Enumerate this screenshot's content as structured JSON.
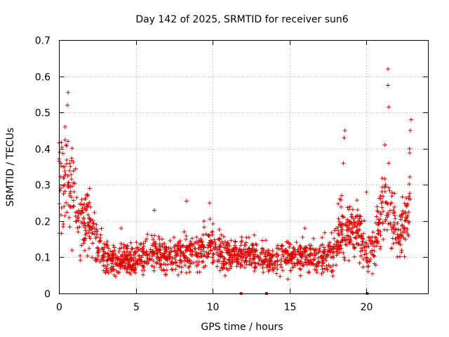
{
  "chart_data": {
    "type": "scatter",
    "title": "Day 142 of 2025, SRMTID for receiver sun6",
    "xlabel": "GPS time / hours",
    "ylabel": "SRMTID / TECUs",
    "xlim": [
      0,
      24
    ],
    "ylim": [
      0,
      0.7
    ],
    "x_ticks": [
      0,
      5,
      10,
      15,
      20
    ],
    "x_tick_labels": [
      "0",
      "5",
      "10",
      "15",
      "20"
    ],
    "y_ticks": [
      0,
      0.1,
      0.2,
      0.3,
      0.4,
      0.5,
      0.6,
      0.7
    ],
    "y_tick_labels": [
      "0",
      "0.1",
      "0.2",
      "0.3",
      "0.4",
      "0.5",
      "0.6",
      "0.7"
    ],
    "grid": true,
    "marker": "plus",
    "color": "#e00000",
    "series": [
      {
        "name": "SRMTID",
        "x_range": [
          0,
          22.85
        ],
        "trend": [
          [
            0.0,
            0.3
          ],
          [
            0.5,
            0.34
          ],
          [
            1.0,
            0.26
          ],
          [
            1.5,
            0.18
          ],
          [
            2.0,
            0.2
          ],
          [
            2.5,
            0.13
          ],
          [
            3.0,
            0.1
          ],
          [
            4.0,
            0.09
          ],
          [
            5.0,
            0.09
          ],
          [
            6.0,
            0.12
          ],
          [
            7.0,
            0.1
          ],
          [
            8.0,
            0.11
          ],
          [
            9.0,
            0.11
          ],
          [
            9.5,
            0.14
          ],
          [
            10.0,
            0.13
          ],
          [
            11.0,
            0.1
          ],
          [
            12.0,
            0.11
          ],
          [
            13.0,
            0.1
          ],
          [
            14.0,
            0.09
          ],
          [
            15.0,
            0.1
          ],
          [
            16.0,
            0.1
          ],
          [
            17.0,
            0.1
          ],
          [
            17.8,
            0.11
          ],
          [
            18.5,
            0.19
          ],
          [
            19.0,
            0.17
          ],
          [
            19.5,
            0.18
          ],
          [
            20.0,
            0.11
          ],
          [
            20.5,
            0.13
          ],
          [
            21.0,
            0.22
          ],
          [
            21.5,
            0.22
          ],
          [
            22.0,
            0.17
          ],
          [
            22.5,
            0.17
          ],
          [
            22.85,
            0.3
          ]
        ],
        "highlights": [
          {
            "x": 0.6,
            "y": 0.555
          },
          {
            "x": 0.55,
            "y": 0.52
          },
          {
            "x": 0.4,
            "y": 0.46
          },
          {
            "x": 0.6,
            "y": 0.42
          },
          {
            "x": 0.05,
            "y": 0.39
          },
          {
            "x": 2.0,
            "y": 0.29
          },
          {
            "x": 8.3,
            "y": 0.255
          },
          {
            "x": 9.8,
            "y": 0.25
          },
          {
            "x": 6.2,
            "y": 0.23
          },
          {
            "x": 18.6,
            "y": 0.45
          },
          {
            "x": 18.55,
            "y": 0.43
          },
          {
            "x": 18.5,
            "y": 0.36
          },
          {
            "x": 21.2,
            "y": 0.41
          },
          {
            "x": 21.4,
            "y": 0.62
          },
          {
            "x": 21.4,
            "y": 0.575
          },
          {
            "x": 21.45,
            "y": 0.515
          },
          {
            "x": 22.9,
            "y": 0.48
          },
          {
            "x": 22.85,
            "y": 0.45
          },
          {
            "x": 22.8,
            "y": 0.4
          },
          {
            "x": 21.45,
            "y": 0.36
          },
          {
            "x": 1.9,
            "y": 0.27
          },
          {
            "x": 4.05,
            "y": 0.18
          },
          {
            "x": 16.0,
            "y": 0.18
          },
          {
            "x": 20.0,
            "y": 0.28
          }
        ],
        "zero_points": [
          11.85,
          13.5,
          20.05
        ]
      }
    ]
  }
}
